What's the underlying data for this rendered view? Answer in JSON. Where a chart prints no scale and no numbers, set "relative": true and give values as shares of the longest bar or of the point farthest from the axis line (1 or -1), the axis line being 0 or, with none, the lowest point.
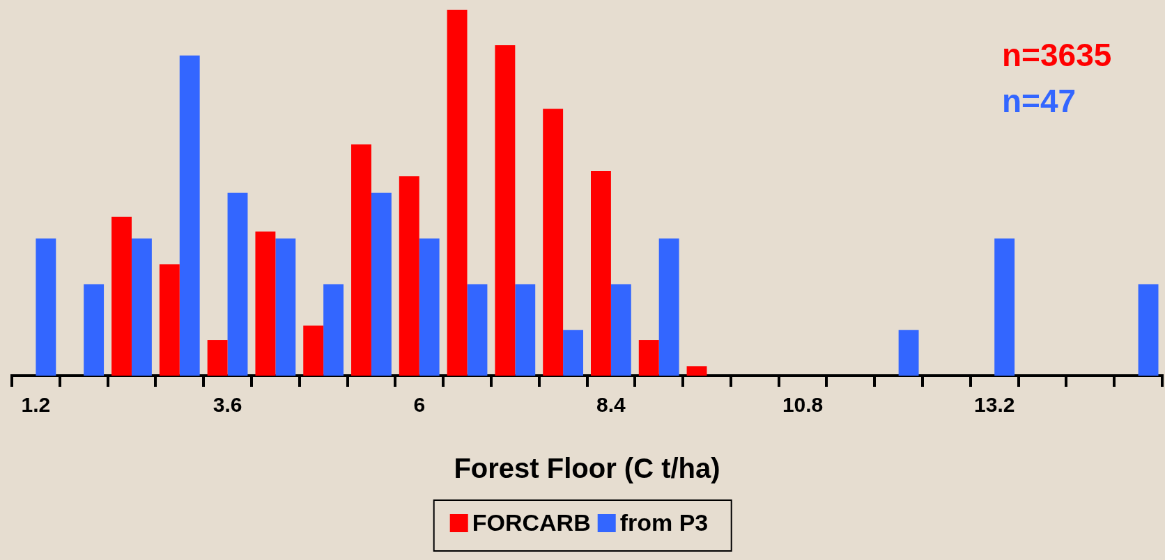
{
  "chart_data": {
    "type": "bar",
    "relative": true,
    "xlabel": "Forest Floor (C t/ha)",
    "categories": [
      "1.2",
      null,
      null,
      null,
      "3.6",
      null,
      null,
      null,
      "6",
      null,
      null,
      null,
      "8.4",
      null,
      null,
      null,
      "10.8",
      null,
      null,
      null,
      "13.2",
      null,
      null,
      null
    ],
    "series": [
      {
        "name": "FORCARB",
        "color": "#ff0000",
        "values": [
          0,
          0,
          0.434,
          0.304,
          0.097,
          0.394,
          0.137,
          0.632,
          0.545,
          1,
          0.903,
          0.729,
          0.559,
          0.097,
          0.026,
          0,
          0,
          0,
          0,
          0,
          0,
          0,
          0,
          0
        ]
      },
      {
        "name": "from P3",
        "color": "#3366ff",
        "values": [
          0.375,
          0.25,
          0.375,
          0.875,
          0.5,
          0.375,
          0.25,
          0.5,
          0.375,
          0.25,
          0.25,
          0.125,
          0.25,
          0.375,
          0,
          0,
          0,
          0,
          0.125,
          0,
          0.375,
          0,
          0,
          0.25
        ]
      }
    ],
    "annotations": [
      "n=3635",
      "n=47"
    ],
    "legend": "bottom",
    "grid": false
  }
}
